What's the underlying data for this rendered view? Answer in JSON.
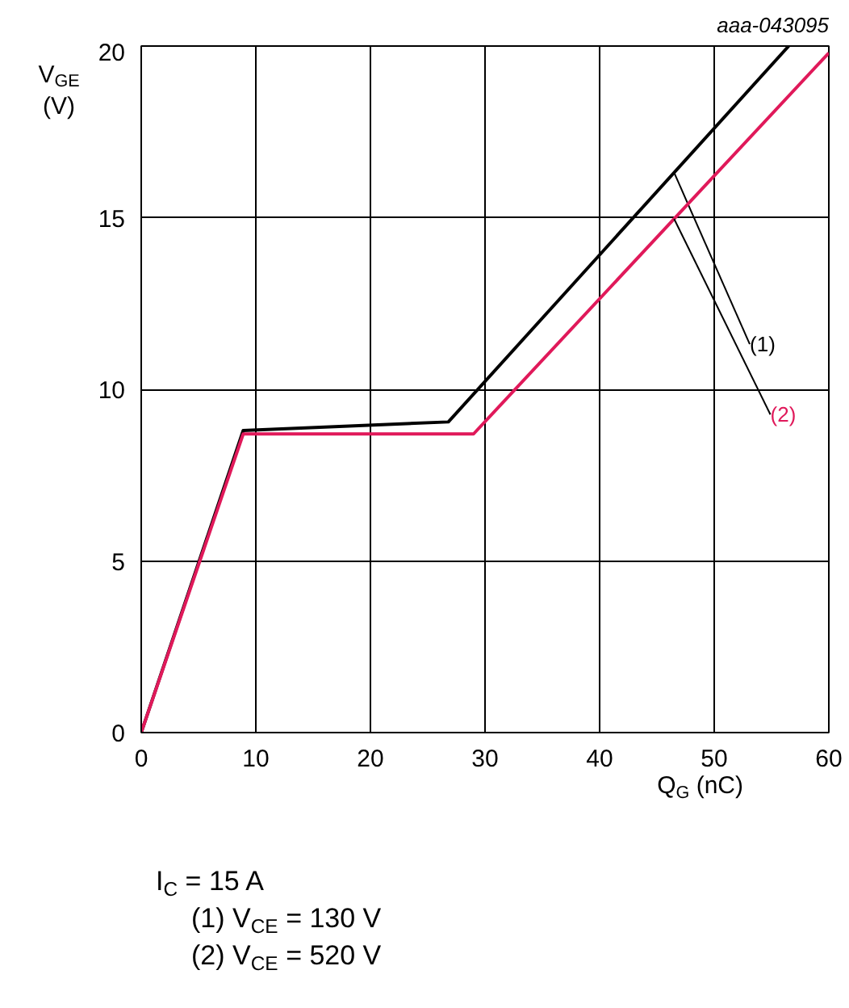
{
  "chart_data": {
    "type": "line",
    "xlabel": "Q$_{G}$ (nC)",
    "ylabel": "V$_{GE}$ (V)",
    "xlim": [
      0,
      60
    ],
    "ylim": [
      0,
      20
    ],
    "xticks": [
      0,
      10,
      20,
      30,
      40,
      50,
      60
    ],
    "yticks": [
      0,
      5,
      10,
      15,
      20
    ],
    "grid": true,
    "line_style": "solid",
    "marker": "none",
    "series": [
      {
        "name": "(1)",
        "color": "#000000",
        "x": [
          0,
          8.9,
          26.8,
          56.5
        ],
        "values": [
          0,
          8.8,
          9.05,
          20
        ]
      },
      {
        "name": "(2)",
        "color": "#e0195a",
        "x": [
          0,
          8.9,
          29,
          60
        ],
        "values": [
          0,
          8.7,
          8.7,
          19.8
        ]
      }
    ],
    "annotations": [
      "aaa-043095",
      "I$_{C}$ = 15 A",
      "(1) V$_{CE}$ = 130 V",
      "(2) V$_{CE}$ = 520 V"
    ]
  }
}
